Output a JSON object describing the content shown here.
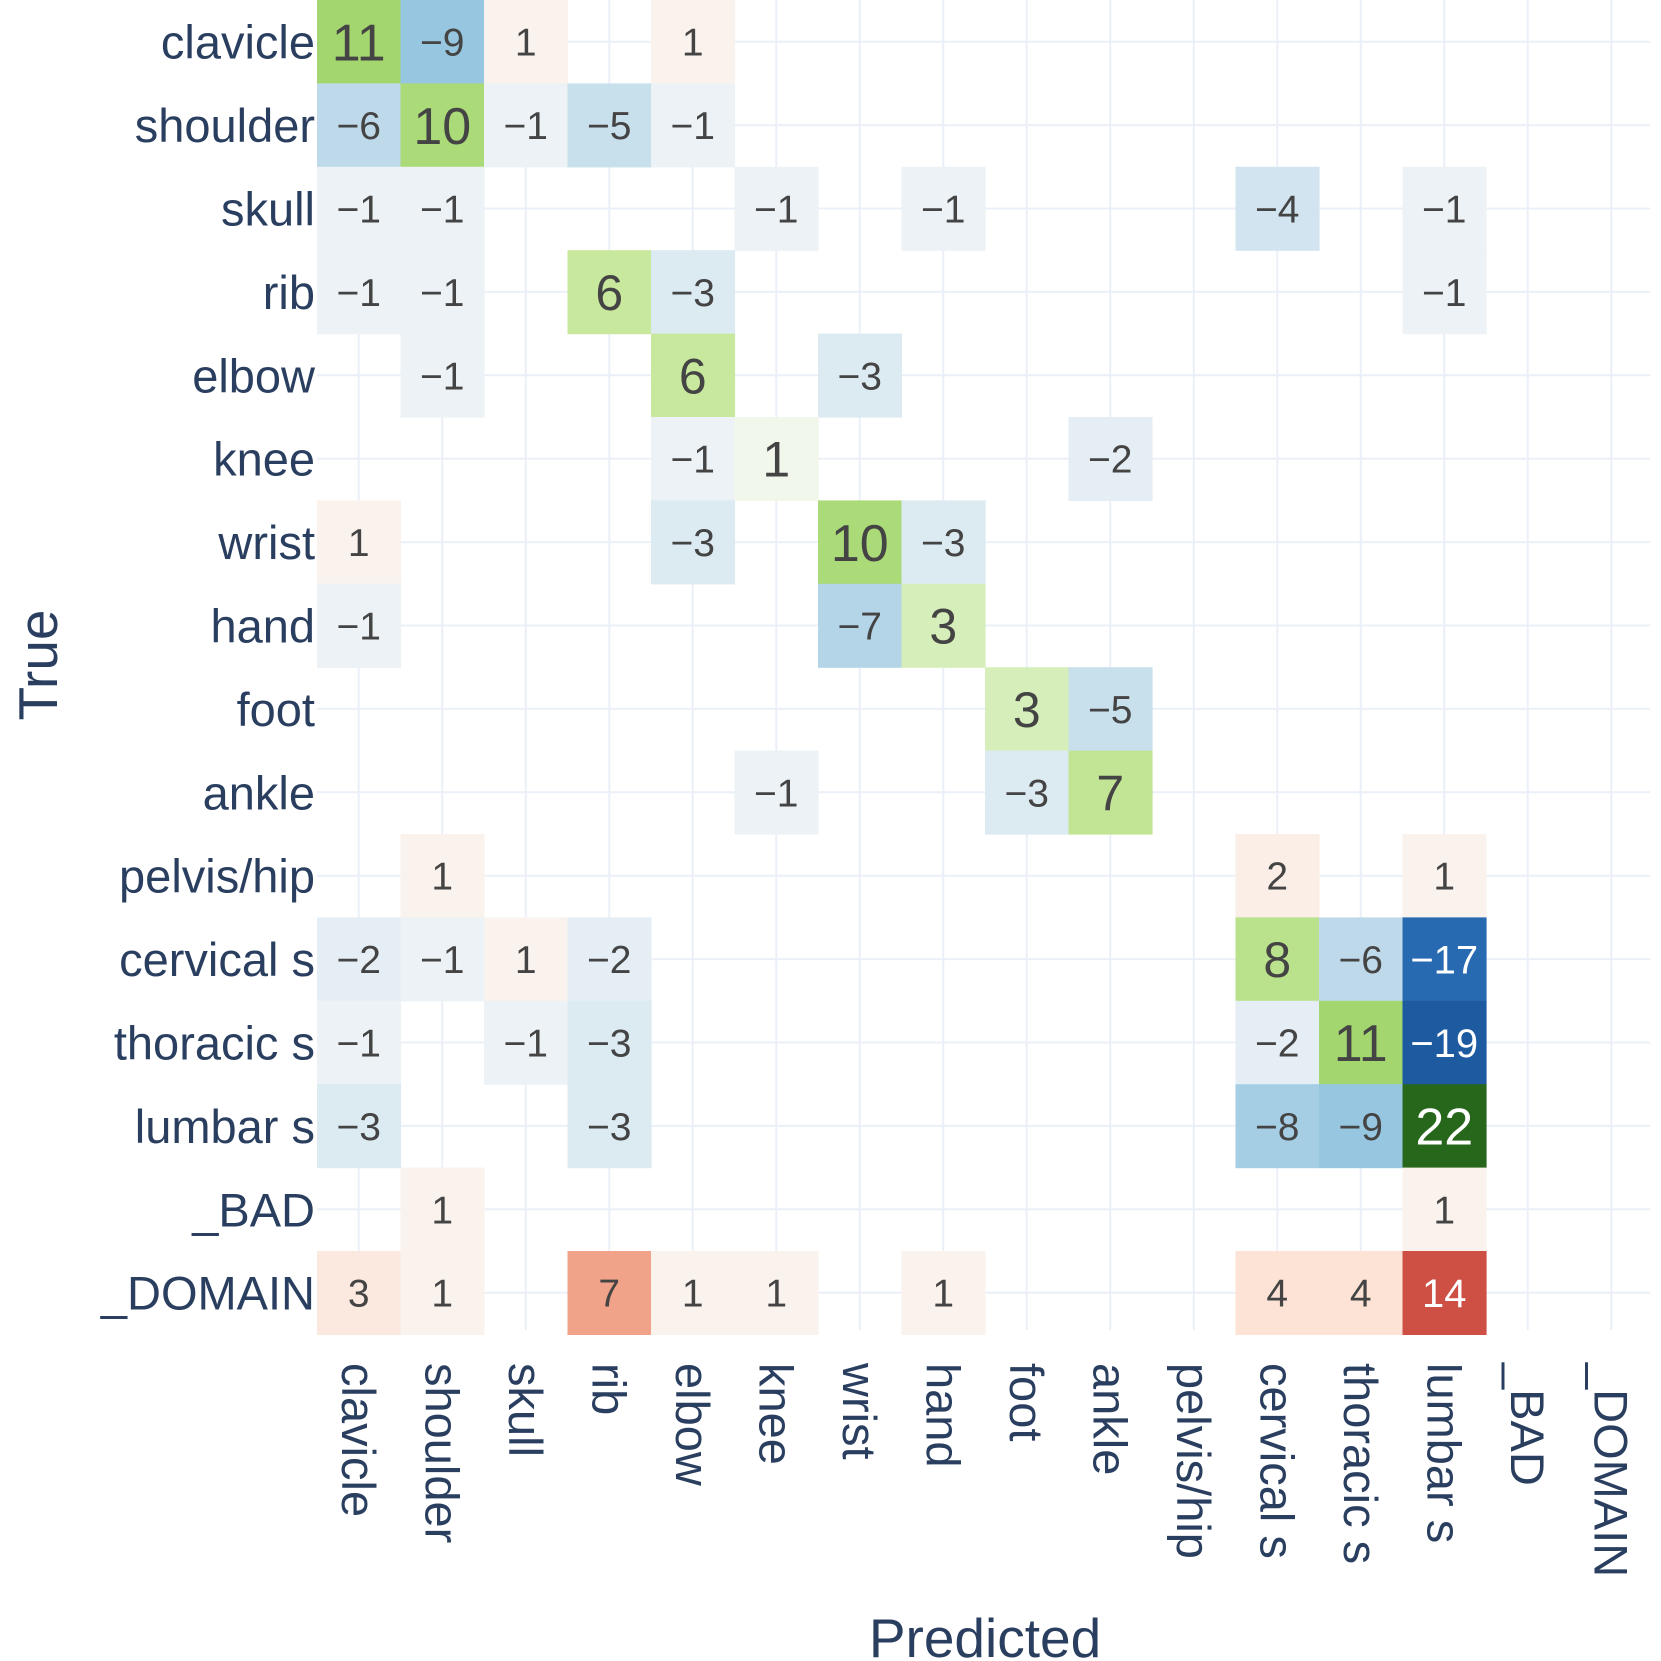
{
  "chart_data": {
    "type": "heatmap",
    "title": "",
    "xlabel": "Predicted",
    "ylabel": "True",
    "row_labels": [
      "clavicle",
      "shoulder",
      "skull",
      "rib",
      "elbow",
      "knee",
      "wrist",
      "hand",
      "foot",
      "ankle",
      "pelvis/hip",
      "cervical s",
      "thoracic s",
      "lumbar s",
      "_BAD",
      "_DOMAIN"
    ],
    "col_labels": [
      "clavicle",
      "shoulder",
      "skull",
      "rib",
      "elbow",
      "knee",
      "wrist",
      "hand",
      "foot",
      "ankle",
      "pelvis/hip",
      "cervical s",
      "thoracic s",
      "lumbar s",
      "_BAD",
      "_DOMAIN"
    ],
    "values": [
      [
        11,
        -9,
        1,
        null,
        1,
        null,
        null,
        null,
        null,
        null,
        null,
        null,
        null,
        null,
        null,
        null
      ],
      [
        -6,
        10,
        -1,
        -5,
        -1,
        null,
        null,
        null,
        null,
        null,
        null,
        null,
        null,
        null,
        null,
        null
      ],
      [
        -1,
        -1,
        null,
        null,
        null,
        -1,
        null,
        -1,
        null,
        null,
        null,
        -4,
        null,
        -1,
        null,
        null
      ],
      [
        -1,
        -1,
        null,
        6,
        -3,
        null,
        null,
        null,
        null,
        null,
        null,
        null,
        null,
        -1,
        null,
        null
      ],
      [
        null,
        -1,
        null,
        null,
        6,
        null,
        -3,
        null,
        null,
        null,
        null,
        null,
        null,
        null,
        null,
        null
      ],
      [
        null,
        null,
        null,
        null,
        -1,
        1,
        null,
        null,
        null,
        -2,
        null,
        null,
        null,
        null,
        null,
        null
      ],
      [
        1,
        null,
        null,
        null,
        -3,
        null,
        10,
        -3,
        null,
        null,
        null,
        null,
        null,
        null,
        null,
        null
      ],
      [
        -1,
        null,
        null,
        null,
        null,
        null,
        -7,
        3,
        null,
        null,
        null,
        null,
        null,
        null,
        null,
        null
      ],
      [
        null,
        null,
        null,
        null,
        null,
        null,
        null,
        null,
        3,
        -5,
        null,
        null,
        null,
        null,
        null,
        null
      ],
      [
        null,
        null,
        null,
        null,
        null,
        -1,
        null,
        null,
        -3,
        7,
        null,
        null,
        null,
        null,
        null,
        null
      ],
      [
        null,
        1,
        null,
        null,
        null,
        null,
        null,
        null,
        null,
        null,
        null,
        2,
        null,
        1,
        null,
        null
      ],
      [
        -2,
        -1,
        1,
        -2,
        null,
        null,
        null,
        null,
        null,
        null,
        null,
        8,
        -6,
        -17,
        null,
        null
      ],
      [
        -1,
        null,
        -1,
        -3,
        null,
        null,
        null,
        null,
        null,
        null,
        null,
        -2,
        11,
        -19,
        null,
        null
      ],
      [
        -3,
        null,
        null,
        -3,
        null,
        null,
        null,
        null,
        null,
        null,
        null,
        -8,
        -9,
        22,
        null,
        null
      ],
      [
        null,
        1,
        null,
        null,
        null,
        null,
        null,
        null,
        null,
        null,
        null,
        null,
        null,
        1,
        null,
        null
      ],
      [
        3,
        1,
        null,
        7,
        1,
        1,
        null,
        1,
        null,
        null,
        null,
        4,
        4,
        14,
        null,
        null
      ]
    ],
    "diagonal_color_scale": "green",
    "off_diagonal_color_scale": "red-blue diverging (positive red, negative blue)",
    "grid": true
  },
  "colors": {
    "axis_text": "#2a3f5f",
    "grid": "#ebf0f8",
    "cell_text_dark": "#444444",
    "cell_text_light": "#ffffff"
  }
}
